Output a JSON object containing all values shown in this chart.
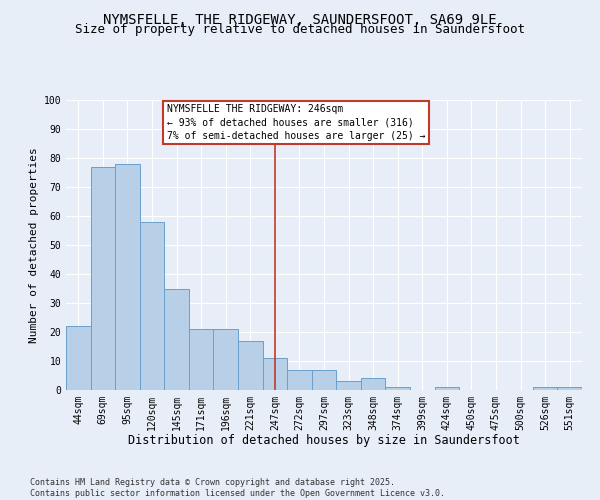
{
  "title": "NYMSFELLE, THE RIDGEWAY, SAUNDERSFOOT, SA69 9LE",
  "subtitle": "Size of property relative to detached houses in Saundersfoot",
  "xlabel": "Distribution of detached houses by size in Saundersfoot",
  "ylabel": "Number of detached properties",
  "footer": "Contains HM Land Registry data © Crown copyright and database right 2025.\nContains public sector information licensed under the Open Government Licence v3.0.",
  "categories": [
    "44sqm",
    "69sqm",
    "95sqm",
    "120sqm",
    "145sqm",
    "171sqm",
    "196sqm",
    "221sqm",
    "247sqm",
    "272sqm",
    "297sqm",
    "323sqm",
    "348sqm",
    "374sqm",
    "399sqm",
    "424sqm",
    "450sqm",
    "475sqm",
    "500sqm",
    "526sqm",
    "551sqm"
  ],
  "values": [
    22,
    77,
    78,
    58,
    35,
    21,
    21,
    17,
    11,
    7,
    7,
    3,
    4,
    1,
    0,
    1,
    0,
    0,
    0,
    1,
    1
  ],
  "bar_color": "#b8cfe8",
  "bar_edge_color": "#6aa0cc",
  "vline_x_index": 8,
  "vline_color": "#c0392b",
  "annotation_line1": "NYMSFELLE THE RIDGEWAY: 246sqm",
  "annotation_line2": "← 93% of detached houses are smaller (316)",
  "annotation_line3": "7% of semi-detached houses are larger (25) →",
  "annotation_box_color": "#c0392b",
  "ylim": [
    0,
    100
  ],
  "yticks": [
    0,
    10,
    20,
    30,
    40,
    50,
    60,
    70,
    80,
    90,
    100
  ],
  "bg_color": "#e8eef8",
  "plot_bg_color": "#e8eef8",
  "grid_color": "#ffffff",
  "title_fontsize": 10,
  "subtitle_fontsize": 9,
  "xlabel_fontsize": 8.5,
  "ylabel_fontsize": 8,
  "tick_fontsize": 7,
  "annotation_fontsize": 7,
  "footer_fontsize": 6
}
